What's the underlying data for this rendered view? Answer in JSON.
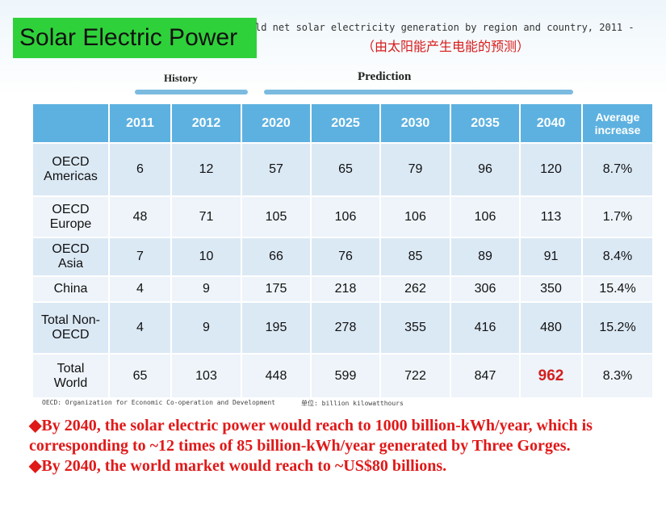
{
  "title": "Solar Electric Power",
  "header": {
    "line1": "ld net solar electricity generation by region and country, 2011 -",
    "line2": "（由太阳能产生电能的预测）"
  },
  "groups": {
    "history": "History",
    "prediction": "Prediction"
  },
  "table": {
    "columns": [
      "",
      "2011",
      "2012",
      "2020",
      "2025",
      "2030",
      "2035",
      "2040",
      "Average increase"
    ],
    "rows": [
      {
        "region": [
          "OECD",
          "Americas"
        ],
        "values": [
          "6",
          "12",
          "57",
          "65",
          "79",
          "96",
          "120",
          "8.7%"
        ]
      },
      {
        "region": [
          "OECD",
          "Europe"
        ],
        "values": [
          "48",
          "71",
          "105",
          "106",
          "106",
          "106",
          "113",
          "1.7%"
        ]
      },
      {
        "region": [
          "OECD",
          "Asia"
        ],
        "values": [
          "7",
          "10",
          "66",
          "76",
          "85",
          "89",
          "91",
          "8.4%"
        ]
      },
      {
        "region": [
          "China"
        ],
        "values": [
          "4",
          "9",
          "175",
          "218",
          "262",
          "306",
          "350",
          "15.4%"
        ]
      },
      {
        "region": [
          "Total Non-",
          "OECD"
        ],
        "values": [
          "4",
          "9",
          "195",
          "278",
          "355",
          "416",
          "480",
          "15.2%"
        ]
      },
      {
        "region": [
          "Total",
          "World"
        ],
        "values": [
          "65",
          "103",
          "448",
          "599",
          "722",
          "847",
          "962",
          "8.3%"
        ]
      }
    ],
    "highlight_color": "#d42020"
  },
  "footnotes": {
    "left": "OECD: Organization for Economic Co-operation and Development",
    "right": "单位: billion kilowatthours"
  },
  "bullets": [
    "◆By 2040, the solar electric power would reach to 1000 billion-kWh/year, which is corresponding to ~12 times of 85 billion-kWh/year generated by Three Gorges.",
    "◆By 2040, the world market would reach to ~US$80 billions."
  ],
  "colors": {
    "header_bg": "#5db1e0",
    "row_a": "#dbe9f5",
    "row_b": "#eef4fa",
    "title_bg": "#2fd13a",
    "bullet_text": "#e01919"
  }
}
